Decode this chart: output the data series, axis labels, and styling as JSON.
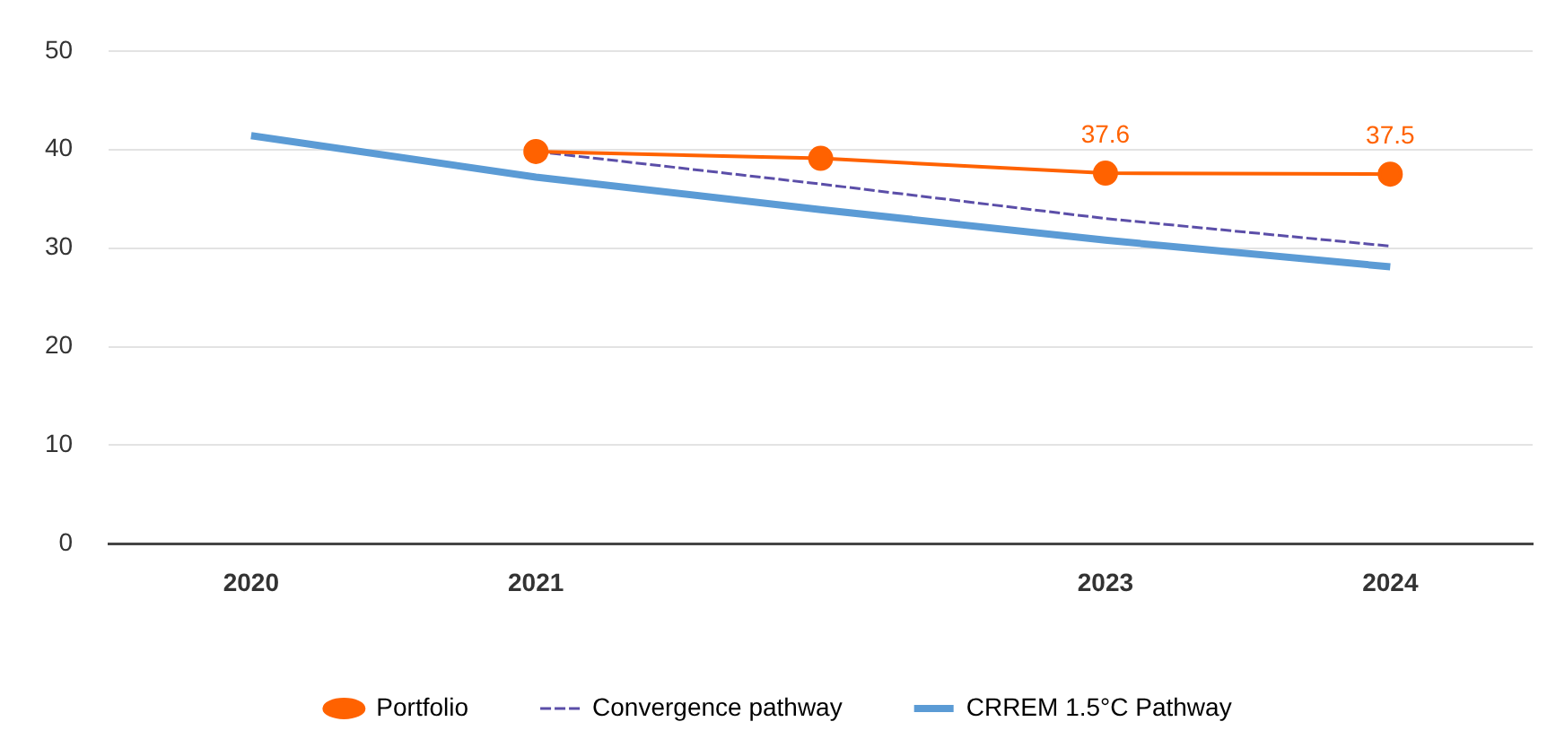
{
  "chart_data": {
    "type": "line",
    "categories": [
      "2020",
      "2021",
      null,
      "2023",
      "2024"
    ],
    "ylim": [
      0,
      50
    ],
    "yticks": [
      0,
      10,
      20,
      30,
      40,
      50
    ],
    "grid": "y",
    "legend": "bottom",
    "series": [
      {
        "name": "Portfolio",
        "color": "#ff6200",
        "marker": "circle",
        "line_style": "solid",
        "values": [
          null,
          39.8,
          39.1,
          37.6,
          37.5
        ],
        "value_labels": [
          null,
          null,
          null,
          "37.6",
          "37.5"
        ]
      },
      {
        "name": "Convergence pathway",
        "color": "#5b4ea8",
        "marker": "none",
        "line_style": "dashed",
        "values": [
          null,
          39.8,
          36.5,
          33.0,
          30.2
        ]
      },
      {
        "name": "CRREM 1.5°C Pathway",
        "color": "#5b9bd5",
        "marker": "none",
        "line_style": "solid",
        "values": [
          41.4,
          37.2,
          33.9,
          30.8,
          28.1
        ]
      }
    ]
  }
}
